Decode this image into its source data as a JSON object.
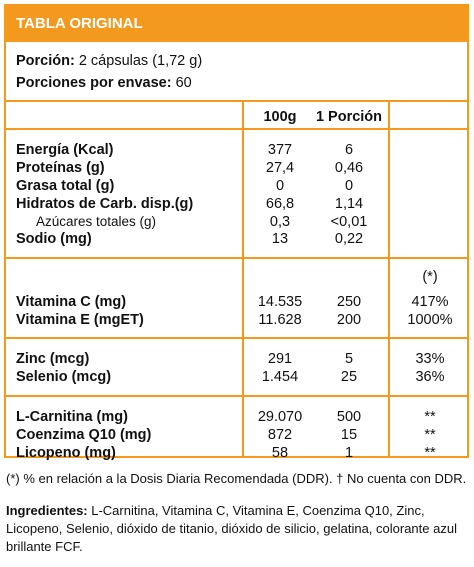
{
  "header": {
    "title": "TABLA ORIGINAL"
  },
  "portion": {
    "label": "Porción:",
    "value": "2 cápsulas (1,72 g)",
    "servings_label": "Porciones por envase:",
    "servings_value": "60"
  },
  "columns": {
    "per100": "100g",
    "perPortion": "1 Porción",
    "ddr": "(*)"
  },
  "groups": [
    {
      "rows": [
        {
          "label": "Energía (Kcal)",
          "v100": "377",
          "vp": "6",
          "ddr": ""
        },
        {
          "label": "Proteínas (g)",
          "v100": "27,4",
          "vp": "0,46",
          "ddr": ""
        },
        {
          "label": "Grasa total (g)",
          "v100": "0",
          "vp": "0",
          "ddr": ""
        },
        {
          "label": "Hidratos de Carb. disp.(g)",
          "v100": "66,8",
          "vp": "1,14",
          "ddr": ""
        },
        {
          "label": "Azúcares totales (g)",
          "v100": "0,3",
          "vp": "<0,01",
          "ddr": "",
          "sub": true
        },
        {
          "label": "Sodio (mg)",
          "v100": "13",
          "vp": "0,22",
          "ddr": ""
        }
      ]
    },
    {
      "rows": [
        {
          "label": "Vitamina C (mg)",
          "v100": "14.535",
          "vp": "250",
          "ddr": "417%"
        },
        {
          "label": "Vitamina E (mgET)",
          "v100": "11.628",
          "vp": "200",
          "ddr": "1000%"
        }
      ]
    },
    {
      "rows": [
        {
          "label": "Zinc (mcg)",
          "v100": "291",
          "vp": "5",
          "ddr": "33%"
        },
        {
          "label": "Selenio (mcg)",
          "v100": "1.454",
          "vp": "25",
          "ddr": "36%"
        }
      ]
    },
    {
      "rows": [
        {
          "label": "L-Carnitina (mg)",
          "v100": "29.070",
          "vp": "500",
          "ddr": "**"
        },
        {
          "label": "Coenzima Q10 (mg)",
          "v100": "872",
          "vp": "15",
          "ddr": "**"
        },
        {
          "label": "Licopeno (mg)",
          "v100": "58",
          "vp": "1",
          "ddr": "**"
        }
      ]
    }
  ],
  "footnote": "(*) % en relación a la Dosis Diaria Recomendada (DDR). † No cuenta con DDR.",
  "ingredients": {
    "label": "Ingredientes:",
    "text": " L-Carnitina, Vitamina C, Vitamina E, Coenzima Q10, Zinc, Licopeno, Selenio, dióxido de titanio, dióxido de silicio, gelatina, colorante azul brillante FCF."
  }
}
